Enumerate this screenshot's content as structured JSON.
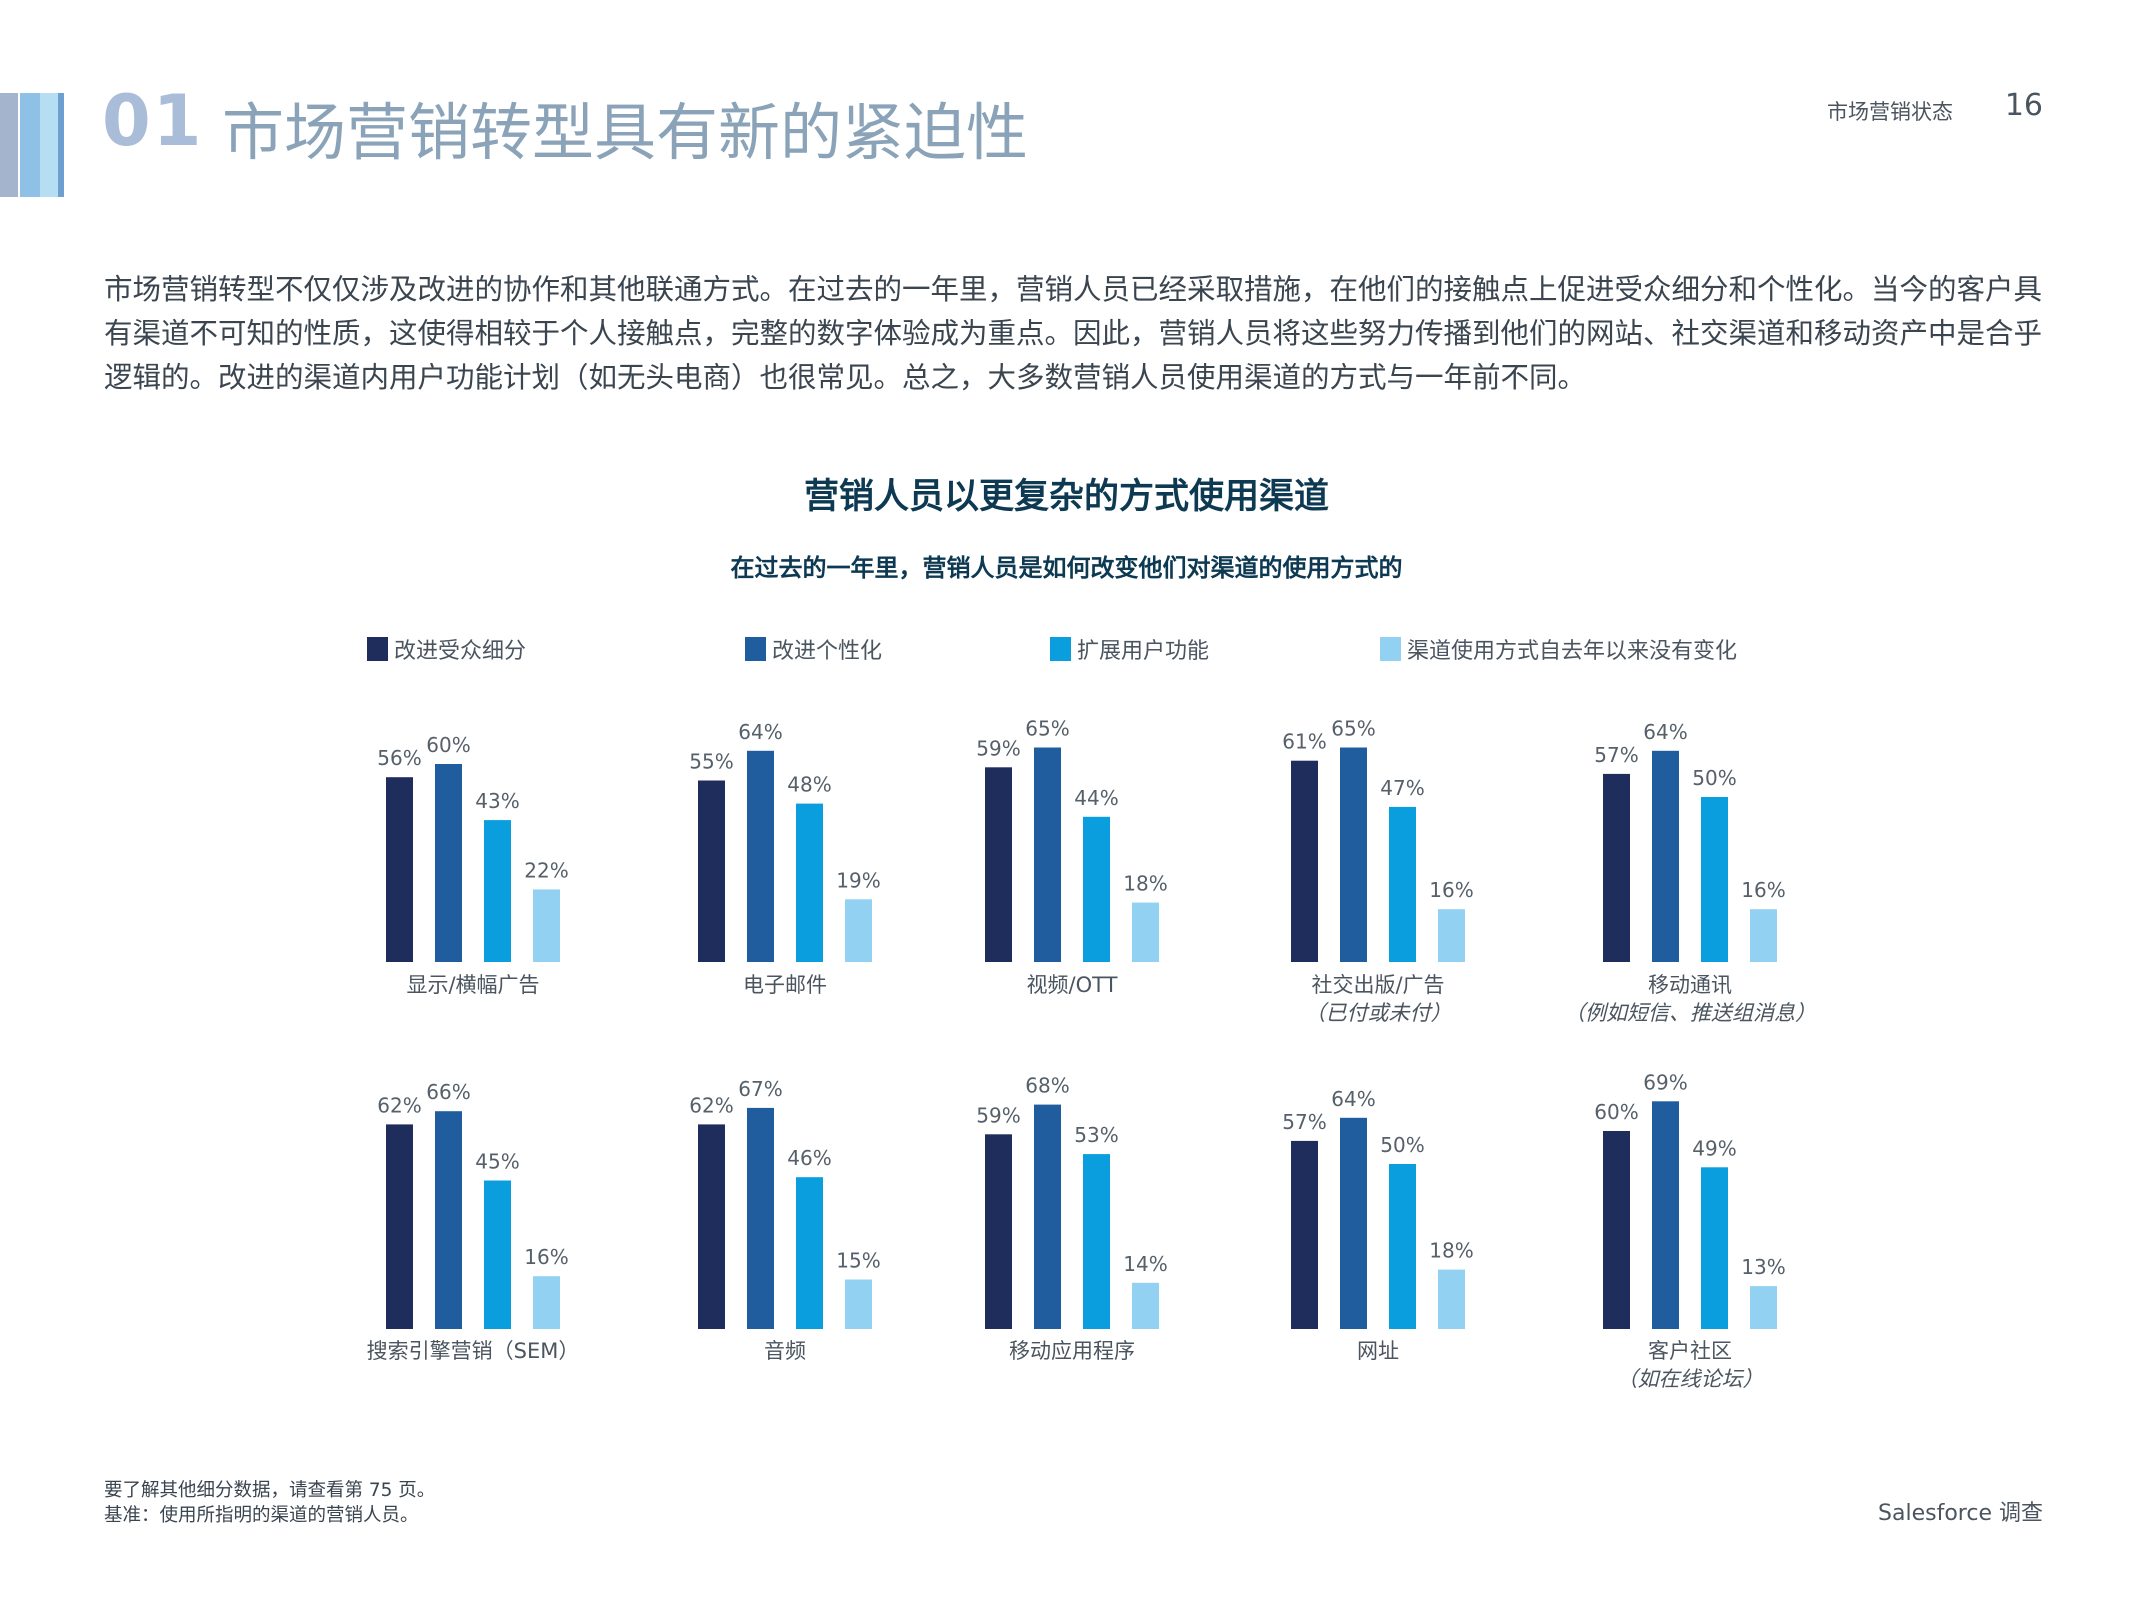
{
  "colors": {
    "improve_segmentation": "#1f2d5c",
    "improve_personalization": "#205d9f",
    "expand_user_features": "#0a9ede",
    "no_change": "#93d1f3",
    "section_title": "#8aa3b8",
    "section_number": "#a9bcd8",
    "chart_title": "#0d3a52",
    "stripe_1": "#a4b4cc",
    "stripe_2": "#8fc0e6",
    "stripe_3": "#b6def3"
  },
  "header": {
    "section_number": "01",
    "section_title": "市场营销转型具有新的紧迫性",
    "report_label": "市场营销状态",
    "page_number": "16"
  },
  "intro": {
    "lines": [
      "市场营销转型不仅仅涉及改进的协作和其他联通方式。在过去的一年里，营销人员已经采取措施，在他们的接触点上促进受众细分和个性化。当今的客户具",
      "有渠道不可知的性质，这使得相较于个人接触点，完整的数字体验成为重点。因此，营销人员将这些努力传播到他们的网站、社交渠道和移动资产中是合乎",
      "逻辑的。改进的渠道内用户功能计划（如无头电商）也很常见。总之，大多数营销人员使用渠道的方式与一年前不同。"
    ]
  },
  "footer": {
    "note_1": "要了解其他细分数据，请查看第 75 页。",
    "note_2": "基准：使用所指明的渠道的营销人员。",
    "brand": "Salesforce 调查"
  },
  "chart_data": {
    "type": "bar",
    "title": "营销人员以更复杂的方式使用渠道",
    "subtitle": "在过去的一年里，营销人员是如何改变他们对渠道的使用方式的",
    "legend_position": "top",
    "series_names": [
      "改进受众细分",
      "改进个性化",
      "扩展用户功能",
      "渠道使用方式自去年以来没有变化"
    ],
    "unit": "%",
    "groups": [
      {
        "label": "显示/横幅广告",
        "sublabel": "",
        "values": [
          56,
          60,
          43,
          22
        ]
      },
      {
        "label": "电子邮件",
        "sublabel": "",
        "values": [
          55,
          64,
          48,
          19
        ]
      },
      {
        "label": "视频/OTT",
        "sublabel": "",
        "values": [
          59,
          65,
          44,
          18
        ]
      },
      {
        "label": "社交出版/广告",
        "sublabel": "（已付或未付）",
        "values": [
          61,
          65,
          47,
          16
        ]
      },
      {
        "label": "移动通讯",
        "sublabel": "（例如短信、推送组消息）",
        "values": [
          57,
          64,
          50,
          16
        ]
      },
      {
        "label": "搜索引擎营销（SEM）",
        "sublabel": "",
        "values": [
          62,
          66,
          45,
          16
        ]
      },
      {
        "label": "音频",
        "sublabel": "",
        "values": [
          62,
          67,
          46,
          15
        ]
      },
      {
        "label": "移动应用程序",
        "sublabel": "",
        "values": [
          59,
          68,
          53,
          14
        ]
      },
      {
        "label": "网址",
        "sublabel": "",
        "values": [
          57,
          64,
          50,
          18
        ]
      },
      {
        "label": "客户社区",
        "sublabel": "（如在线论坛）",
        "values": [
          60,
          69,
          49,
          13
        ]
      }
    ]
  }
}
